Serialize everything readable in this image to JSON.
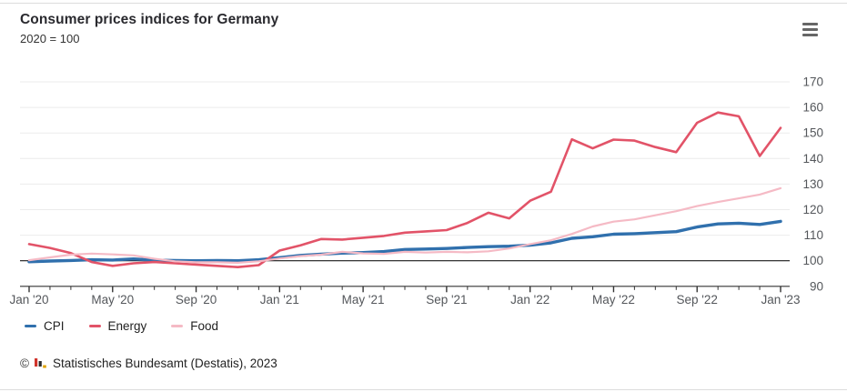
{
  "header": {
    "title": "Consumer prices indices for Germany",
    "subtitle": "2020 = 100"
  },
  "menu": {
    "label": "chart context menu"
  },
  "chart_data": {
    "type": "line",
    "title": "Consumer prices indices for Germany",
    "subtitle": "2020 = 100",
    "xlabel": "",
    "ylabel": "",
    "grid": true,
    "legend_position": "bottom-left",
    "ylim": [
      90,
      170
    ],
    "y_ticks": [
      90,
      100,
      110,
      120,
      130,
      140,
      150,
      160,
      170
    ],
    "baseline": 100,
    "x": [
      "Jan 2020",
      "Feb 2020",
      "Mar 2020",
      "Apr 2020",
      "May 2020",
      "Jun 2020",
      "Jul 2020",
      "Aug 2020",
      "Sep 2020",
      "Oct 2020",
      "Nov 2020",
      "Dec 2020",
      "Jan 2021",
      "Feb 2021",
      "Mar 2021",
      "Apr 2021",
      "May 2021",
      "Jun 2021",
      "Jul 2021",
      "Aug 2021",
      "Sep 2021",
      "Oct 2021",
      "Nov 2021",
      "Dec 2021",
      "Jan 2022",
      "Feb 2022",
      "Mar 2022",
      "Apr 2022",
      "May 2022",
      "Jun 2022",
      "Jul 2022",
      "Aug 2022",
      "Sep 2022",
      "Oct 2022",
      "Nov 2022",
      "Dec 2022",
      "Jan 2023"
    ],
    "x_tick_labels": [
      "Jan '20",
      "May '20",
      "Sep '20",
      "Jan '21",
      "May '21",
      "Sep '21",
      "Jan '22",
      "May '22",
      "Sep '22",
      "Jan '23"
    ],
    "x_tick_positions": [
      0,
      4,
      8,
      12,
      16,
      20,
      24,
      28,
      32,
      36
    ],
    "series": [
      {
        "name": "CPI",
        "color": "#3070ad",
        "width": 3.4,
        "values": [
          99.6,
          99.9,
          100.1,
          100.4,
          100.3,
          100.7,
          100.2,
          100.1,
          100.0,
          100.1,
          100.0,
          100.4,
          101.2,
          102.1,
          102.6,
          103.0,
          103.2,
          103.6,
          104.4,
          104.6,
          104.8,
          105.2,
          105.5,
          105.7,
          106.1,
          107.0,
          108.8,
          109.4,
          110.4,
          110.6,
          111.0,
          111.4,
          113.2,
          114.4,
          114.7,
          114.2,
          115.4
        ]
      },
      {
        "name": "Energy",
        "color": "#e25368",
        "width": 2.6,
        "values": [
          106.5,
          105.0,
          103.0,
          99.5,
          98.0,
          99.0,
          99.5,
          99.0,
          98.5,
          98.0,
          97.5,
          98.3,
          104.0,
          106.0,
          108.5,
          108.3,
          109.0,
          109.7,
          111.0,
          111.5,
          112.0,
          114.8,
          118.8,
          116.6,
          123.5,
          127.0,
          147.5,
          144.0,
          147.4,
          147.0,
          144.5,
          142.5,
          154.0,
          158.0,
          156.5,
          141.0,
          152.0
        ]
      },
      {
        "name": "Food",
        "color": "#f5bac5",
        "width": 2.2,
        "values": [
          100.2,
          101.3,
          102.4,
          102.8,
          102.5,
          102.1,
          100.8,
          99.8,
          99.4,
          99.4,
          99.2,
          99.8,
          100.9,
          101.8,
          102.4,
          103.5,
          102.9,
          102.7,
          103.5,
          103.2,
          103.5,
          103.3,
          103.7,
          104.8,
          106.5,
          108.0,
          110.5,
          113.4,
          115.3,
          116.2,
          117.8,
          119.4,
          121.4,
          123.0,
          124.4,
          125.9,
          128.4
        ]
      }
    ]
  },
  "legend": {
    "items": [
      {
        "label": "CPI"
      },
      {
        "label": "Energy"
      },
      {
        "label": "Food"
      }
    ]
  },
  "footer": {
    "copyright": "©",
    "source": "Statistisches Bundesamt (Destatis), 2023"
  }
}
